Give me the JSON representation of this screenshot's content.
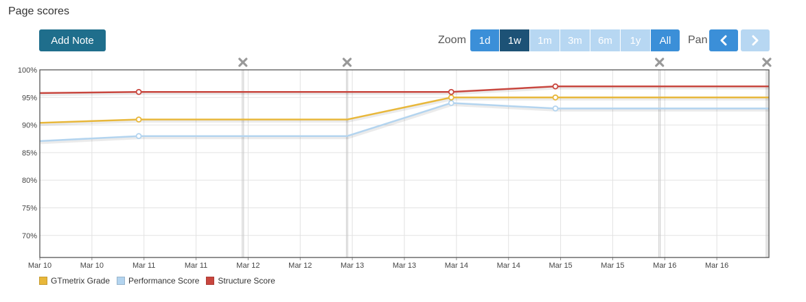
{
  "page": {
    "title": "Page scores"
  },
  "toolbar": {
    "add_note_label": "Add Note",
    "zoom_label": "Zoom",
    "pan_label": "Pan",
    "zoom_buttons": [
      {
        "label": "1d",
        "state": "enabled"
      },
      {
        "label": "1w",
        "state": "active"
      },
      {
        "label": "1m",
        "state": "disabled"
      },
      {
        "label": "3m",
        "state": "disabled"
      },
      {
        "label": "6m",
        "state": "disabled"
      },
      {
        "label": "1y",
        "state": "disabled"
      },
      {
        "label": "All",
        "state": "enabled"
      }
    ],
    "pan_prev_icon": "chevron-left-icon",
    "pan_next_icon": "chevron-right-icon"
  },
  "colors": {
    "zoom_enabled": "#3b8fd8",
    "zoom_active": "#1d5276",
    "zoom_disabled": "#b7d7f2",
    "note_marker": "#999999"
  },
  "chart_data": {
    "type": "line",
    "ylim": [
      66,
      100
    ],
    "y_ticks": [
      70,
      75,
      80,
      85,
      90,
      95,
      100
    ],
    "y_tick_labels": [
      "70%",
      "75%",
      "80%",
      "85%",
      "90%",
      "95%",
      "100%"
    ],
    "x_range": [
      0,
      7
    ],
    "x_ticks": [
      0,
      0.5,
      1,
      1.5,
      2,
      2.5,
      3,
      3.5,
      4,
      4.5,
      5,
      5.5,
      6,
      6.5
    ],
    "x_tick_labels": [
      "Mar 10",
      "Mar 10",
      "Mar 11",
      "Mar 11",
      "Mar 12",
      "Mar 12",
      "Mar 13",
      "Mar 13",
      "Mar 14",
      "Mar 14",
      "Mar 15",
      "Mar 15",
      "Mar 16",
      "Mar 16"
    ],
    "note_markers_x": [
      1.95,
      2.95,
      5.95,
      6.98
    ],
    "grid": true,
    "legend": "bottom-left",
    "series": [
      {
        "name": "GTmetrix Grade",
        "color": "#e8b73a",
        "points": [
          [
            0,
            90.4
          ],
          [
            0.95,
            91
          ],
          [
            2.95,
            91
          ],
          [
            3.95,
            95
          ],
          [
            4.95,
            95
          ],
          [
            7,
            95
          ]
        ],
        "markers": [
          [
            0.95,
            91
          ],
          [
            3.95,
            95
          ],
          [
            4.95,
            95
          ]
        ]
      },
      {
        "name": "Performance Score",
        "color": "#b3d4ef",
        "points": [
          [
            0,
            87.1
          ],
          [
            0.95,
            88
          ],
          [
            2.95,
            88
          ],
          [
            3.95,
            94
          ],
          [
            4.95,
            93
          ],
          [
            7,
            93
          ]
        ],
        "markers": [
          [
            0.95,
            88
          ],
          [
            3.95,
            94
          ],
          [
            4.95,
            93
          ]
        ]
      },
      {
        "name": "Structure Score",
        "color": "#c8463e",
        "points": [
          [
            0,
            95.8
          ],
          [
            0.95,
            96
          ],
          [
            3.95,
            96
          ],
          [
            4.95,
            97
          ],
          [
            7,
            97
          ]
        ],
        "markers": [
          [
            0.95,
            96
          ],
          [
            3.95,
            96
          ],
          [
            4.95,
            97
          ]
        ]
      }
    ]
  }
}
